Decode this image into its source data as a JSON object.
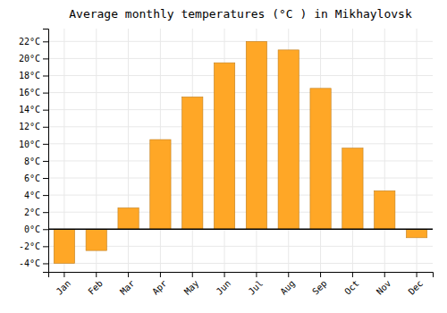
{
  "chart_data": {
    "type": "bar",
    "title": "Average monthly temperatures (°C ) in Mikhaylovsk",
    "categories": [
      "Jan",
      "Feb",
      "Mar",
      "Apr",
      "May",
      "Jun",
      "Jul",
      "Aug",
      "Sep",
      "Oct",
      "Nov",
      "Dec"
    ],
    "values": [
      -4.0,
      -2.5,
      2.5,
      10.5,
      15.5,
      19.5,
      22.0,
      21.0,
      16.5,
      9.5,
      4.5,
      -1.0
    ],
    "color": "#FFA726",
    "ylim": [
      -5,
      23.5
    ],
    "yticks": [
      {
        "value": -4,
        "label": "-4°C"
      },
      {
        "value": -2,
        "label": "-2°C"
      },
      {
        "value": 0,
        "label": "0°C"
      },
      {
        "value": 2,
        "label": "2°C"
      },
      {
        "value": 4,
        "label": "4°C"
      },
      {
        "value": 6,
        "label": "6°C"
      },
      {
        "value": 8,
        "label": "8°C"
      },
      {
        "value": 10,
        "label": "10°C"
      },
      {
        "value": 12,
        "label": "12°C"
      },
      {
        "value": 14,
        "label": "14°C"
      },
      {
        "value": 16,
        "label": "16°C"
      },
      {
        "value": 18,
        "label": "18°C"
      },
      {
        "value": 20,
        "label": "20°C"
      },
      {
        "value": 22,
        "label": "22°C"
      }
    ],
    "grid": true
  }
}
